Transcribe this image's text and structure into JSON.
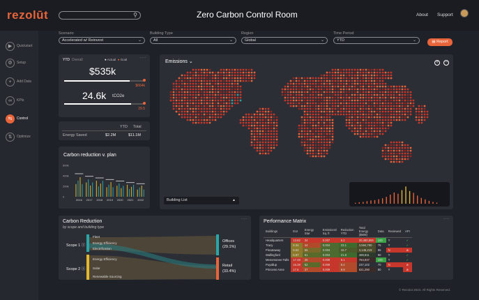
{
  "app": {
    "logo": "rezolūt",
    "title": "Zero Carbon Control Room",
    "nav": [
      "About",
      "Support"
    ]
  },
  "sidebar": {
    "items": [
      {
        "label": "Quickstart",
        "icon": "play-icon"
      },
      {
        "label": "Setup",
        "icon": "gear-icon"
      },
      {
        "label": "Add Data",
        "icon": "plus-icon"
      },
      {
        "label": "KPIs",
        "icon": "link-icon"
      },
      {
        "label": "Control",
        "icon": "control-icon",
        "active": true
      },
      {
        "label": "Optimize",
        "icon": "optimize-icon"
      }
    ]
  },
  "filters": [
    {
      "label": "Scenario",
      "value": "Accelerated w/ Reinvest"
    },
    {
      "label": "Building Type",
      "value": "All"
    },
    {
      "label": "Region",
      "value": "Global"
    },
    {
      "label": "Time Period",
      "value": "YTD"
    }
  ],
  "report_label": "Report",
  "kpi": {
    "tabs": [
      "YTD",
      "Overall"
    ],
    "legend_actual": "Actual",
    "legend_goal": "Goal",
    "cost_value": "$535k",
    "cost_goal": "$664k",
    "cost_progress": 0.81,
    "co2_value": "24.6k",
    "co2_unit": "tCO2e",
    "co2_goal": "29.5",
    "co2_progress": 0.83
  },
  "energy": {
    "col_ytd": "YTD",
    "col_total": "Total",
    "row_label": "Energy Saved",
    "ytd": "$2.2M",
    "total": "$11.1M"
  },
  "reduction_chart": {
    "title": "Carbon reduction v. plan",
    "y_ticks": [
      "600k",
      "400k",
      "200k",
      "0"
    ],
    "x_ticks": [
      "2016",
      "2017",
      "2018",
      "2019",
      "2020",
      "2021",
      "2022"
    ]
  },
  "chart_data": {
    "type": "bar",
    "title": "Carbon reduction v. plan",
    "categories": [
      "2016",
      "2017",
      "2018",
      "2019",
      "2020",
      "2021",
      "2022"
    ],
    "series": [
      {
        "name": "Actual",
        "values": [
          440000,
          390000,
          360000,
          330000,
          300000,
          270000,
          250000
        ]
      }
    ],
    "ylim": [
      0,
      600000
    ]
  },
  "map": {
    "title": "Emissions",
    "building_list": "Building List",
    "histogram": [
      0.05,
      0.08,
      0.1,
      0.14,
      0.18,
      0.2,
      0.25,
      0.3,
      0.38,
      0.5,
      0.62,
      0.55,
      0.75,
      0.95,
      0.7,
      0.6,
      0.45,
      0.32,
      0.24,
      0.16,
      0.1,
      0.06
    ]
  },
  "sankey": {
    "title": "Carbon Reduction",
    "subtitle": "by scope and building type",
    "scope1": "Scope 1",
    "scope2": "Scope 2",
    "nodes1": [
      "Fleet",
      "Energy Efficiency",
      "Electrification"
    ],
    "nodes2": [
      "Energy Efficiency",
      "Solar",
      "Renewable Sourcing"
    ],
    "out1_label": "Offices",
    "out1_pct": "(29.1%)",
    "out2_label": "Retail",
    "out2_pct": "(33.4%)"
  },
  "matrix": {
    "title": "Performance Matrix",
    "headers": [
      "Buildings",
      "EUI",
      "Energy Star",
      "Emissions/ Sq. ft",
      "Reduction YTD",
      "Total Energy ($MM)",
      "Data",
      "Reviewed",
      "API"
    ],
    "rows": [
      {
        "name": "Headquarters",
        "eui": "13.62",
        "star": "34",
        "em": "0.007",
        "red": "6.2",
        "total": "20,490,900",
        "data": "100",
        "rev": "Y",
        "api": "ok",
        "c": [
          "#c7362b",
          "#c7362b",
          "#c7362b",
          "#c7362b",
          "#c7362b",
          "#3aa346"
        ]
      },
      {
        "name": "Tracy",
        "eui": "5.34",
        "star": "44",
        "em": "0.004",
        "red": "23.1",
        "total": "3,594,790",
        "data": "75",
        "rev": "Y",
        "api": "ok",
        "c": [
          "#8c7a2a",
          "#b04a2a",
          "#4d6a30",
          "#3e6a2e",
          "#4a4a2a",
          "#2b2e35"
        ]
      },
      {
        "name": "Piscataway",
        "eui": "6.52",
        "star": "55",
        "em": "0.004",
        "red": "15.7",
        "total": "3,146,219",
        "data": "85",
        "rev": "N",
        "api": "err",
        "c": [
          "#8c7a2a",
          "#7a6a2a",
          "#4d6a30",
          "#4a5a2a",
          "#4a4a2a",
          "#2b2e35"
        ]
      },
      {
        "name": "Wallingford",
        "eui": "5.87",
        "star": "61",
        "em": "0.004",
        "red": "21.8",
        "total": "488,811",
        "data": "90",
        "rev": "Y",
        "api": "ok",
        "c": [
          "#8c7a2a",
          "#5a6a2a",
          "#4d6a30",
          "#3e6a2e",
          "#2b3a2a",
          "#2b2e35"
        ]
      },
      {
        "name": "Menomonee Falls",
        "eui": "17.49",
        "star": "36",
        "em": "0.009",
        "red": "6.1",
        "total": "784,937",
        "data": "100",
        "rev": "Y",
        "api": "ok",
        "c": [
          "#c7362b",
          "#b04a2a",
          "#c7362b",
          "#c7362b",
          "#3a2a2a",
          "#3aa346"
        ]
      },
      {
        "name": "Puyallup",
        "eui": "16.39",
        "star": "62",
        "em": "0.009",
        "red": "8.4",
        "total": "237,102",
        "data": "70",
        "rev": "N",
        "api": "err",
        "c": [
          "#c7362b",
          "#5a6a2a",
          "#c7362b",
          "#b04a2a",
          "#2b2e35",
          "#2b2e35"
        ]
      },
      {
        "name": "Princess Anne",
        "eui": "17.6",
        "star": "37",
        "em": "0.009",
        "red": "8.9",
        "total": "621,290",
        "data": "80",
        "rev": "Y",
        "api": "err",
        "c": [
          "#c7362b",
          "#b04a2a",
          "#c7362b",
          "#b04a2a",
          "#3a2a2a",
          "#2b2e35"
        ]
      }
    ]
  },
  "footer": "© Rezolut 2023. All Rights Reserved.",
  "colors": {
    "accent": "#e8643a",
    "teal": "#2aa6a8",
    "yellow": "#e3b82c",
    "green": "#3aa346",
    "red": "#c7362b"
  }
}
